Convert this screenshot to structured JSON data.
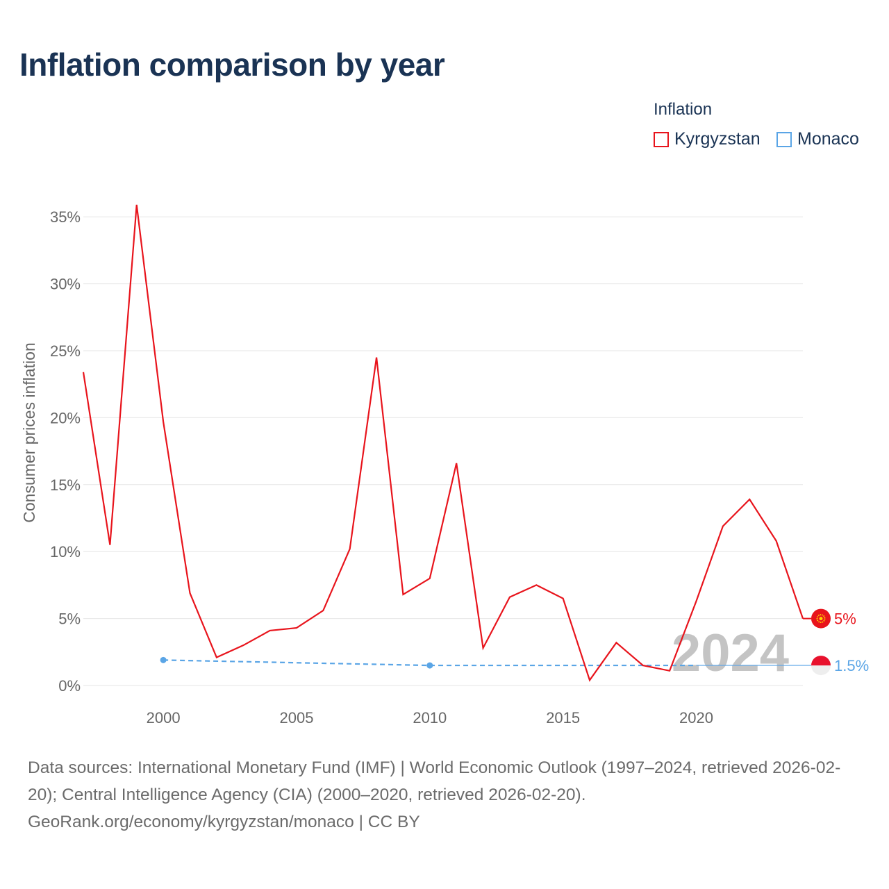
{
  "title": "Inflation comparison by year",
  "legend": {
    "title": "Inflation",
    "items": [
      {
        "label": "Kyrgyzstan",
        "color": "#e8141c"
      },
      {
        "label": "Monaco",
        "color": "#5aa5e6"
      }
    ]
  },
  "year_watermark": "2024",
  "chart_data": {
    "type": "line",
    "title": "Inflation comparison by year",
    "xlabel": "",
    "ylabel": "Consumer prices inflation",
    "xlim": [
      1997,
      2024
    ],
    "ylim": [
      0,
      36
    ],
    "x_ticks": [
      2000,
      2005,
      2010,
      2015,
      2020
    ],
    "y_ticks": [
      0,
      5,
      10,
      15,
      20,
      25,
      30,
      35
    ],
    "y_tick_labels": [
      "0%",
      "5%",
      "10%",
      "15%",
      "20%",
      "25%",
      "30%",
      "35%"
    ],
    "grid": true,
    "legend_position": "top-right",
    "series": [
      {
        "name": "Kyrgyzstan",
        "color": "#e8141c",
        "style": "solid",
        "x": [
          1997,
          1998,
          1999,
          2000,
          2001,
          2002,
          2003,
          2004,
          2005,
          2006,
          2007,
          2008,
          2009,
          2010,
          2011,
          2012,
          2013,
          2014,
          2015,
          2016,
          2017,
          2018,
          2019,
          2020,
          2021,
          2022,
          2023,
          2024
        ],
        "values": [
          23.4,
          10.5,
          35.9,
          19.7,
          6.9,
          2.1,
          3.0,
          4.1,
          4.3,
          5.6,
          10.2,
          24.5,
          6.8,
          8.0,
          16.6,
          2.8,
          6.6,
          7.5,
          6.5,
          0.4,
          3.2,
          1.5,
          1.1,
          6.3,
          11.9,
          13.9,
          10.8,
          5.0
        ],
        "end_label": "5%"
      },
      {
        "name": "Monaco",
        "color": "#5aa5e6",
        "style": "dashed",
        "x": [
          2000,
          2010,
          2020
        ],
        "values": [
          1.9,
          1.5,
          1.5
        ],
        "end_value": 1.5,
        "end_label": "1.5%"
      }
    ]
  },
  "footer": {
    "line1": "Data sources: International Monetary Fund (IMF) | World Economic Outlook (1997–2024, retrieved 2026-02-20); Central Intelligence Agency (CIA) (2000–2020, retrieved 2026-02-20).",
    "line2": "GeoRank.org/economy/kyrgyzstan/monaco | CC BY"
  }
}
